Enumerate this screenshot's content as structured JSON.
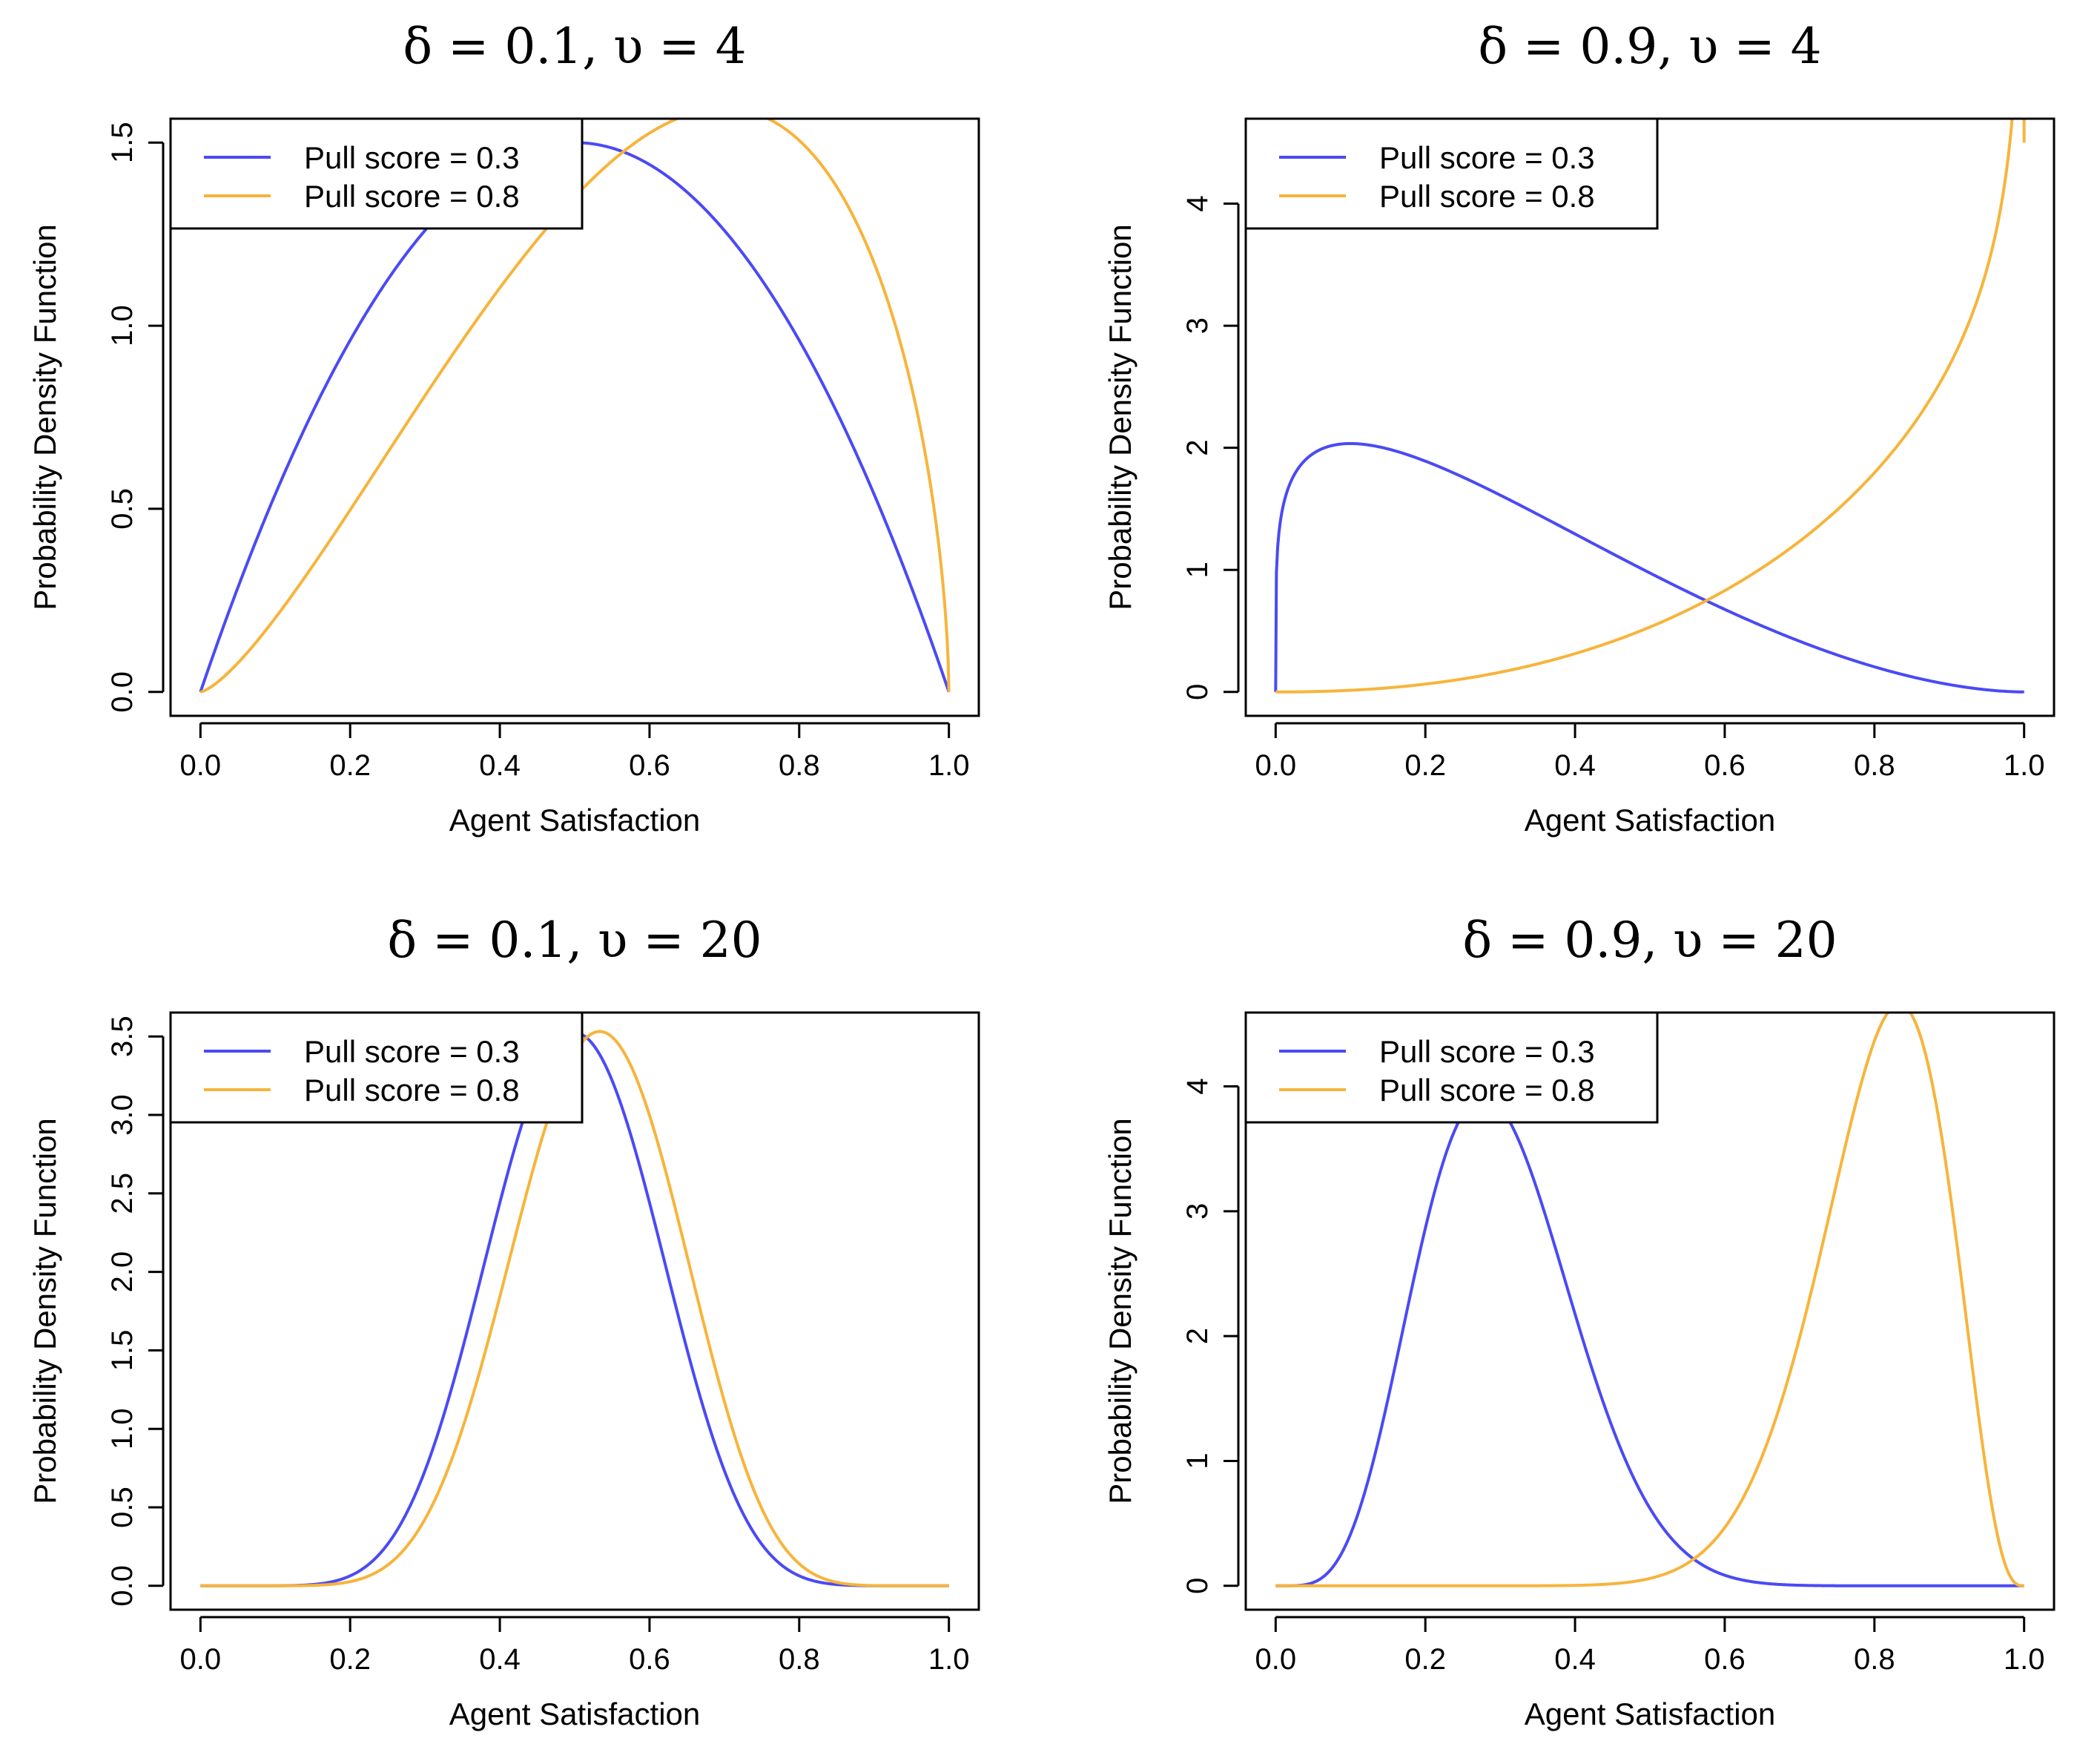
{
  "chart_data": [
    {
      "type": "line",
      "title": "δ = 0.1, υ = 4",
      "xlabel": "Agent Satisfaction",
      "ylabel": "Probability Density Function",
      "xlim": [
        0,
        1
      ],
      "ylim": [
        0,
        1.5
      ],
      "xticks": [
        "0.0",
        "0.2",
        "0.4",
        "0.6",
        "0.8",
        "1.0"
      ],
      "yticks": [
        "0.0",
        "0.5",
        "1.0",
        "1.5"
      ],
      "ytick_values": [
        0,
        0.5,
        1.0,
        1.5
      ],
      "legend_position": "top-left",
      "series": [
        {
          "name": "Pull score = 0.3",
          "color": "#4a4af5",
          "mean": 0.5,
          "nu": 4
        },
        {
          "name": "Pull score = 0.8",
          "color": "#f7b43b",
          "mean": 0.6,
          "nu": 4
        }
      ]
    },
    {
      "type": "line",
      "title": "δ = 0.9, υ = 4",
      "xlabel": "Agent Satisfaction",
      "ylabel": "Probability Density Function",
      "xlim": [
        0,
        1
      ],
      "ylim": [
        0,
        4.5
      ],
      "xticks": [
        "0.0",
        "0.2",
        "0.4",
        "0.6",
        "0.8",
        "1.0"
      ],
      "yticks": [
        "0",
        "1",
        "2",
        "3",
        "4"
      ],
      "ytick_values": [
        0,
        1,
        2,
        3,
        4
      ],
      "legend_position": "top-left",
      "series": [
        {
          "name": "Pull score = 0.3",
          "color": "#4a4af5",
          "mean": 0.3,
          "nu": 4
        },
        {
          "name": "Pull score = 0.8",
          "color": "#f7b43b",
          "mean": 0.8,
          "nu": 4
        }
      ]
    },
    {
      "type": "line",
      "title": "δ = 0.1, υ = 20",
      "xlabel": "Agent Satisfaction",
      "ylabel": "Probability Density Function",
      "xlim": [
        0,
        1
      ],
      "ylim": [
        0,
        3.5
      ],
      "xticks": [
        "0.0",
        "0.2",
        "0.4",
        "0.6",
        "0.8",
        "1.0"
      ],
      "yticks": [
        "0.0",
        "0.5",
        "1.0",
        "1.5",
        "2.0",
        "2.5",
        "3.0",
        "3.5"
      ],
      "ytick_values": [
        0,
        0.5,
        1.0,
        1.5,
        2.0,
        2.5,
        3.0,
        3.5
      ],
      "legend_position": "top-left",
      "series": [
        {
          "name": "Pull score = 0.3",
          "color": "#4a4af5",
          "mean": 0.5,
          "nu": 20
        },
        {
          "name": "Pull score = 0.8",
          "color": "#f7b43b",
          "mean": 0.53,
          "nu": 20
        }
      ]
    },
    {
      "type": "line",
      "title": "δ = 0.9, υ = 20",
      "xlabel": "Agent Satisfaction",
      "ylabel": "Probability Density Function",
      "xlim": [
        0,
        1
      ],
      "ylim": [
        0,
        4.4
      ],
      "xticks": [
        "0.0",
        "0.2",
        "0.4",
        "0.6",
        "0.8",
        "1.0"
      ],
      "yticks": [
        "0",
        "1",
        "2",
        "3",
        "4"
      ],
      "ytick_values": [
        0,
        1,
        2,
        3,
        4
      ],
      "legend_position": "top-left",
      "series": [
        {
          "name": "Pull score = 0.3",
          "color": "#4a4af5",
          "mean": 0.3,
          "nu": 20
        },
        {
          "name": "Pull score = 0.8",
          "color": "#f7b43b",
          "mean": 0.8,
          "nu": 20
        }
      ]
    }
  ]
}
